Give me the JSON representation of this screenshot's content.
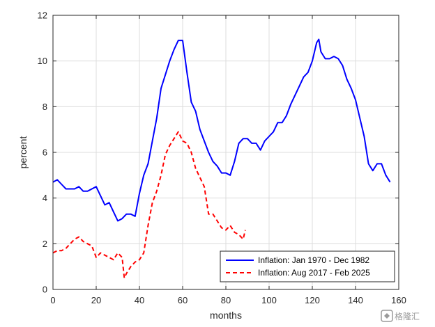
{
  "chart_data": {
    "type": "line",
    "title": "",
    "xlabel": "months",
    "ylabel": "percent",
    "xlim": [
      0,
      160
    ],
    "ylim": [
      0,
      12
    ],
    "xticks": [
      0,
      20,
      40,
      60,
      80,
      100,
      120,
      140,
      160
    ],
    "yticks": [
      0,
      2,
      4,
      6,
      8,
      10,
      12
    ],
    "grid": true,
    "legend_position": "bottom-right",
    "series": [
      {
        "name": "Inflation: Jan 1970 - Dec 1982",
        "color": "#0000ff",
        "style": "solid",
        "x": [
          0,
          2,
          4,
          6,
          8,
          10,
          12,
          14,
          16,
          18,
          20,
          22,
          24,
          26,
          28,
          30,
          32,
          34,
          36,
          38,
          40,
          42,
          44,
          46,
          48,
          50,
          52,
          54,
          56,
          58,
          60,
          62,
          64,
          66,
          68,
          70,
          72,
          74,
          76,
          78,
          80,
          82,
          84,
          86,
          88,
          90,
          92,
          94,
          96,
          98,
          100,
          102,
          104,
          106,
          108,
          110,
          112,
          114,
          116,
          118,
          120,
          122,
          123,
          124,
          126,
          128,
          130,
          132,
          134,
          136,
          138,
          140,
          142,
          144,
          146,
          148,
          150,
          152,
          154,
          156
        ],
        "y": [
          4.7,
          4.8,
          4.6,
          4.4,
          4.4,
          4.4,
          4.5,
          4.3,
          4.3,
          4.4,
          4.5,
          4.1,
          3.7,
          3.8,
          3.4,
          3.0,
          3.1,
          3.3,
          3.3,
          3.2,
          4.2,
          5.0,
          5.5,
          6.5,
          7.5,
          8.8,
          9.4,
          10.0,
          10.5,
          10.9,
          10.9,
          9.5,
          8.2,
          7.8,
          7.0,
          6.5,
          6.0,
          5.6,
          5.4,
          5.1,
          5.1,
          5.0,
          5.6,
          6.4,
          6.6,
          6.6,
          6.4,
          6.4,
          6.1,
          6.5,
          6.7,
          6.9,
          7.3,
          7.3,
          7.6,
          8.1,
          8.5,
          8.9,
          9.3,
          9.5,
          10.0,
          10.8,
          10.95,
          10.4,
          10.1,
          10.1,
          10.2,
          10.1,
          9.8,
          9.2,
          8.8,
          8.3,
          7.5,
          6.7,
          5.5,
          5.2,
          5.5,
          5.5,
          5.0,
          4.7
        ]
      },
      {
        "name": "Inflation: Aug 2017 - Feb 2025",
        "color": "#ff0000",
        "style": "dashed",
        "x": [
          0,
          2,
          4,
          6,
          8,
          10,
          12,
          14,
          16,
          18,
          20,
          22,
          24,
          26,
          28,
          30,
          32,
          33,
          34,
          36,
          38,
          40,
          42,
          44,
          46,
          48,
          50,
          52,
          54,
          56,
          58,
          60,
          62,
          64,
          66,
          68,
          70,
          72,
          74,
          76,
          78,
          80,
          82,
          84,
          86,
          88,
          89
        ],
        "y": [
          1.6,
          1.7,
          1.7,
          1.8,
          2.0,
          2.2,
          2.3,
          2.1,
          2.0,
          1.9,
          1.4,
          1.6,
          1.5,
          1.4,
          1.3,
          1.6,
          1.4,
          0.5,
          0.7,
          1.0,
          1.2,
          1.3,
          1.6,
          2.8,
          3.8,
          4.3,
          5.0,
          5.9,
          6.3,
          6.6,
          6.9,
          6.5,
          6.4,
          6.0,
          5.3,
          4.9,
          4.5,
          3.3,
          3.3,
          3.0,
          2.7,
          2.6,
          2.8,
          2.5,
          2.4,
          2.2,
          2.6
        ]
      }
    ]
  },
  "watermark": {
    "brand_text": "格隆汇",
    "icon": "gelonghui-logo-icon",
    "color": "#9a9a9a"
  }
}
